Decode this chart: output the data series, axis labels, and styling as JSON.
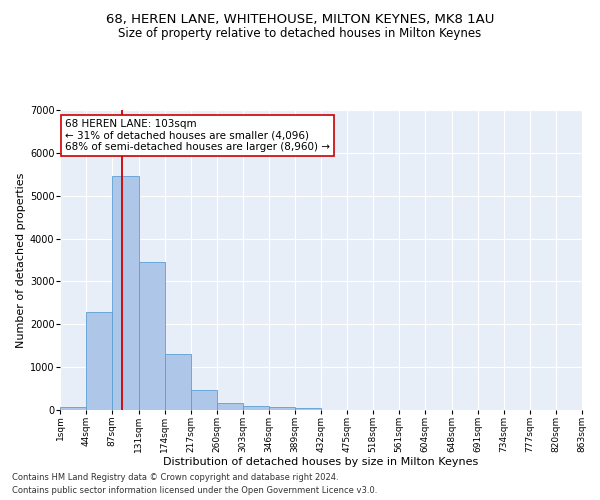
{
  "title1": "68, HEREN LANE, WHITEHOUSE, MILTON KEYNES, MK8 1AU",
  "title2": "Size of property relative to detached houses in Milton Keynes",
  "xlabel": "Distribution of detached houses by size in Milton Keynes",
  "ylabel": "Number of detached properties",
  "footnote1": "Contains HM Land Registry data © Crown copyright and database right 2024.",
  "footnote2": "Contains public sector information licensed under the Open Government Licence v3.0.",
  "bar_edges": [
    1,
    44,
    87,
    131,
    174,
    217,
    260,
    303,
    346,
    389,
    432,
    475,
    518,
    561,
    604,
    648,
    691,
    734,
    777,
    820,
    863
  ],
  "bar_heights": [
    80,
    2280,
    5470,
    3450,
    1310,
    470,
    160,
    100,
    60,
    40,
    0,
    0,
    0,
    0,
    0,
    0,
    0,
    0,
    0,
    0
  ],
  "bar_color": "#aec6e8",
  "bar_edgecolor": "#5a9fd4",
  "bg_color": "#e8eef8",
  "grid_color": "#ffffff",
  "annotation_text": "68 HEREN LANE: 103sqm\n← 31% of detached houses are smaller (4,096)\n68% of semi-detached houses are larger (8,960) →",
  "vline_x": 103,
  "vline_color": "#cc0000",
  "annotation_box_edgecolor": "#cc0000",
  "ylim": [
    0,
    7000
  ],
  "tick_labels": [
    "1sqm",
    "44sqm",
    "87sqm",
    "131sqm",
    "174sqm",
    "217sqm",
    "260sqm",
    "303sqm",
    "346sqm",
    "389sqm",
    "432sqm",
    "475sqm",
    "518sqm",
    "561sqm",
    "604sqm",
    "648sqm",
    "691sqm",
    "734sqm",
    "777sqm",
    "820sqm",
    "863sqm"
  ],
  "title1_fontsize": 9.5,
  "title2_fontsize": 8.5,
  "xlabel_fontsize": 8,
  "ylabel_fontsize": 8,
  "annotation_fontsize": 7.5,
  "tick_fontsize": 6.5,
  "footnote_fontsize": 6
}
